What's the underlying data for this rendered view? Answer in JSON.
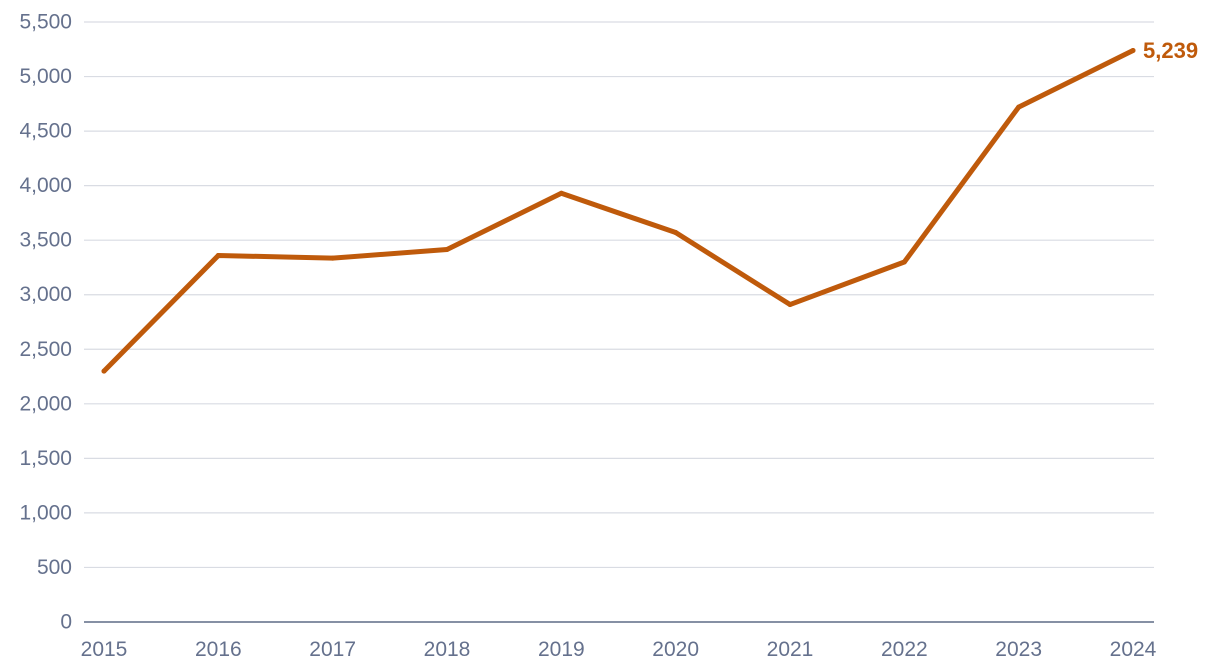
{
  "chart_data": {
    "type": "line",
    "title": "",
    "xlabel": "",
    "ylabel": "",
    "categories": [
      "2015",
      "2016",
      "2017",
      "2018",
      "2019",
      "2020",
      "2021",
      "2022",
      "2023",
      "2024"
    ],
    "series": [
      {
        "values": [
          2300,
          3360,
          3335,
          3415,
          3930,
          3570,
          2910,
          3300,
          4720,
          5239
        ]
      }
    ],
    "end_label": "5,239",
    "ylim": [
      0,
      5500
    ],
    "yticks": [
      0,
      500,
      1000,
      1500,
      2000,
      2500,
      3000,
      3500,
      4000,
      4500,
      5000,
      5500
    ],
    "ytick_labels": [
      "0",
      "500",
      "1,000",
      "1,500",
      "2,000",
      "2,500",
      "3,000",
      "3,500",
      "4,000",
      "4,500",
      "5,000",
      "5,500"
    ],
    "grid": true,
    "legend": "none",
    "colors": {
      "series": "#bf5a0b",
      "grid": "#d9dce3",
      "axis": "#5f6b86",
      "tick_text": "#65718d"
    }
  }
}
